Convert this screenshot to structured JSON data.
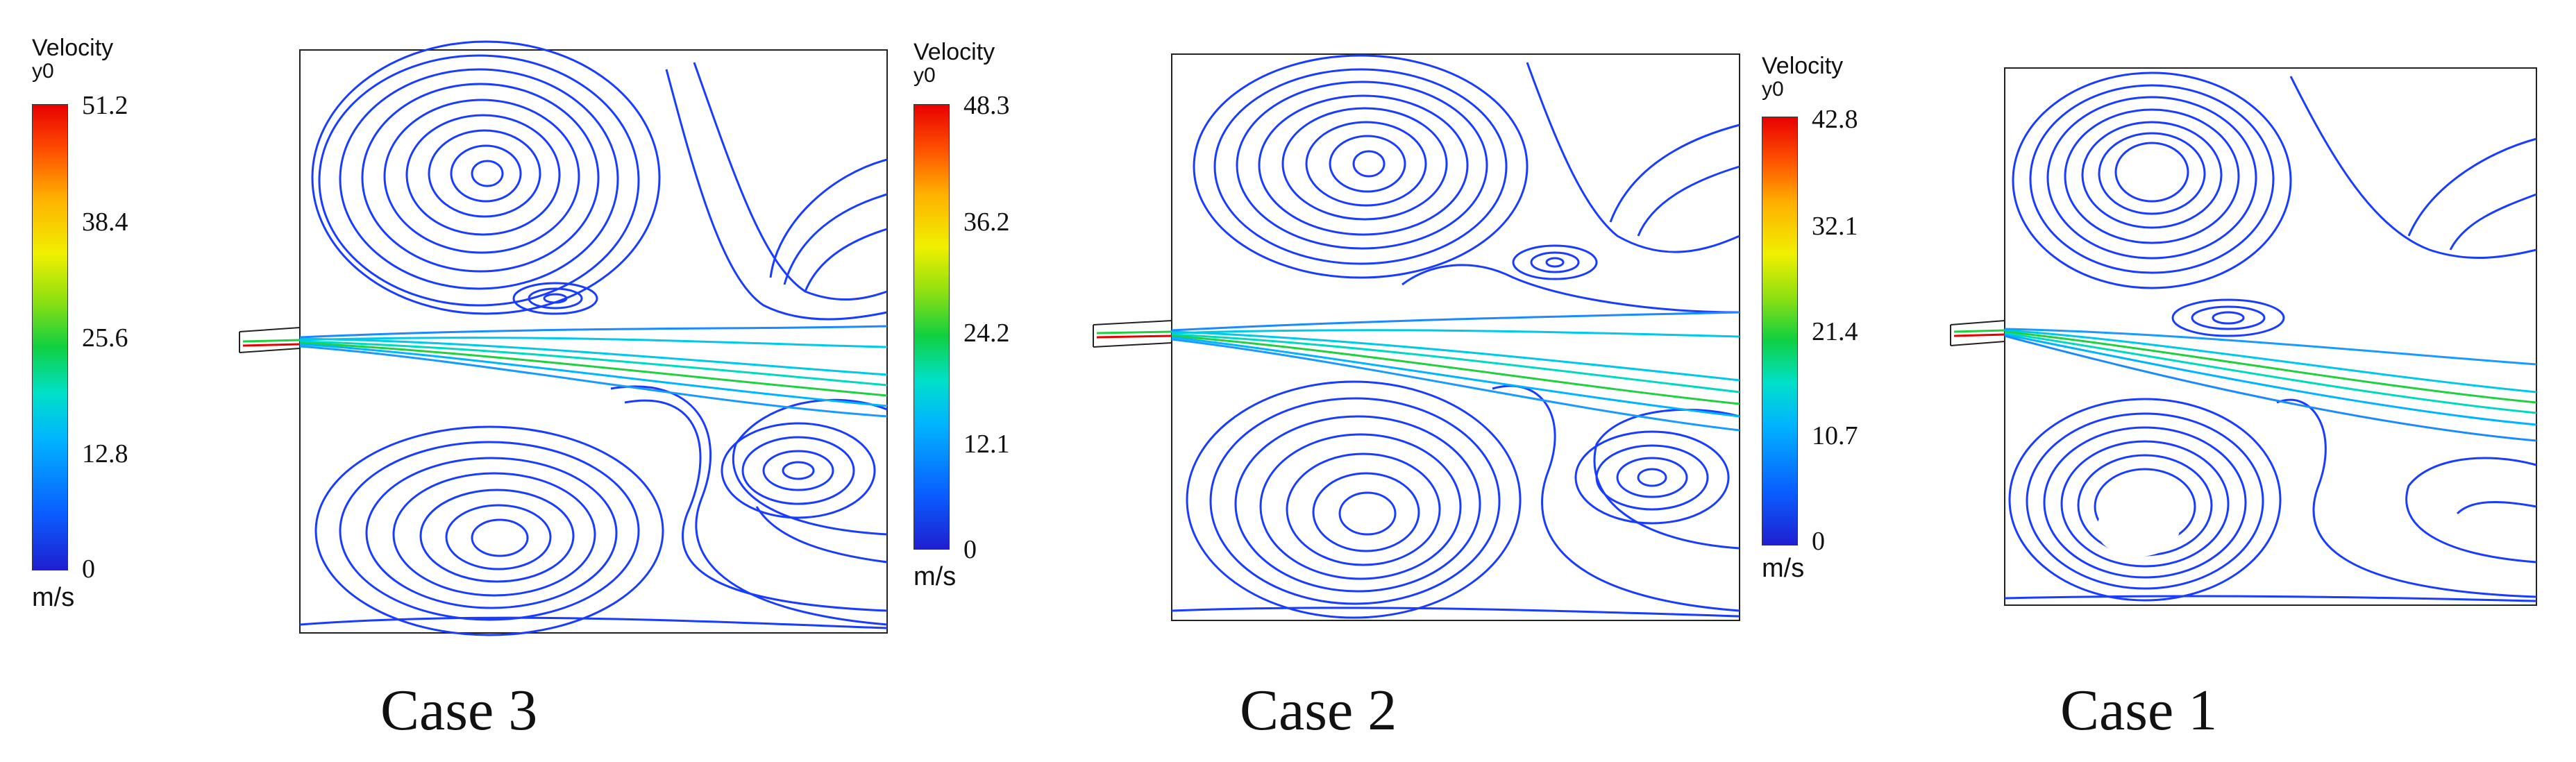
{
  "panels": [
    {
      "case_label": "Case 3",
      "legend": {
        "title": "Velocity",
        "subtitle": "y0",
        "unit": "m/s",
        "ticks": [
          "51.2",
          "38.4",
          "25.6",
          "12.8",
          "0"
        ]
      }
    },
    {
      "case_label": "Case 2",
      "legend": {
        "title": "Velocity",
        "subtitle": "y0",
        "unit": "m/s",
        "ticks": [
          "48.3",
          "36.2",
          "24.2",
          "12.1",
          "0"
        ]
      }
    },
    {
      "case_label": "Case 1",
      "legend": {
        "title": "Velocity",
        "subtitle": "y0",
        "unit": "m/s",
        "ticks": [
          "42.8",
          "32.1",
          "21.4",
          "10.7",
          "0"
        ]
      }
    }
  ],
  "colors": {
    "streamline_low": "#1a1aff",
    "streamline_mid": "#00c8e8",
    "streamline_green": "#20d040",
    "streamline_high": "#e80000"
  }
}
